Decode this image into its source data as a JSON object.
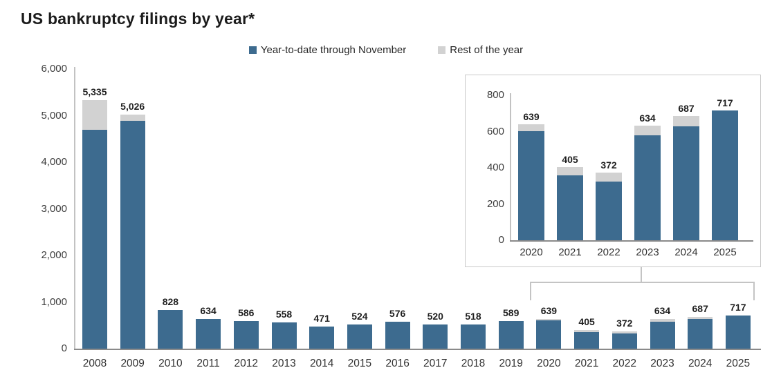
{
  "title": "US bankruptcy filings by year*",
  "legend": {
    "items": [
      {
        "label": "Year-to-date through November",
        "color": "#3d6b8f"
      },
      {
        "label": "Rest of the year",
        "color": "#d2d2d2"
      }
    ]
  },
  "colors": {
    "ytd_bar": "#3d6b8f",
    "rest_bar": "#d2d2d2",
    "x_axis_line": "#8a8a8a",
    "y_axis_line": "#c2c2c2",
    "title_text": "#1c1c1c",
    "tick_text": "#3d3d3d",
    "bar_label_text": "#1f1f1f",
    "inset_border": "#c9c9c9",
    "connector_line": "#c4c4c4"
  },
  "chart_data": [
    {
      "id": "main-chart",
      "type": "bar",
      "stacked": true,
      "title": "US bankruptcy filings by year*",
      "legend_position": "top",
      "grid": false,
      "categories": [
        "2008",
        "2009",
        "2010",
        "2011",
        "2012",
        "2013",
        "2014",
        "2015",
        "2016",
        "2017",
        "2018",
        "2019",
        "2020",
        "2021",
        "2022",
        "2023",
        "2024",
        "2025"
      ],
      "series": [
        {
          "name": "Year-to-date through November",
          "values": [
            4700,
            4890,
            828,
            634,
            586,
            558,
            471,
            524,
            576,
            520,
            518,
            589,
            600,
            360,
            325,
            580,
            630,
            717
          ]
        },
        {
          "name": "Rest of the year",
          "values": [
            635,
            136,
            0,
            0,
            0,
            0,
            0,
            0,
            0,
            0,
            0,
            0,
            39,
            45,
            47,
            54,
            57,
            0
          ]
        }
      ],
      "bar_total_labels": [
        "5,335",
        "5,026",
        "828",
        "634",
        "586",
        "558",
        "471",
        "524",
        "576",
        "520",
        "518",
        "589",
        "639",
        "405",
        "372",
        "634",
        "687",
        "717"
      ],
      "ylim": [
        0,
        6000
      ],
      "yticks": [
        {
          "v": 6000,
          "label": "6,000"
        },
        {
          "v": 5000,
          "label": "5,000"
        },
        {
          "v": 4000,
          "label": "4,000"
        },
        {
          "v": 3000,
          "label": "3,000"
        },
        {
          "v": 2000,
          "label": "2,000"
        },
        {
          "v": 1000,
          "label": "1,000"
        },
        {
          "v": 0,
          "label": "0"
        }
      ]
    },
    {
      "id": "inset-chart",
      "type": "bar",
      "stacked": true,
      "title": "",
      "legend_position": "none",
      "grid": false,
      "categories": [
        "2020",
        "2021",
        "2022",
        "2023",
        "2024",
        "2025"
      ],
      "series": [
        {
          "name": "Year-to-date through November",
          "values": [
            600,
            360,
            325,
            580,
            630,
            717
          ]
        },
        {
          "name": "Rest of the year",
          "values": [
            39,
            45,
            47,
            54,
            57,
            0
          ]
        }
      ],
      "bar_total_labels": [
        "639",
        "405",
        "372",
        "634",
        "687",
        "717"
      ],
      "ylim": [
        0,
        800
      ],
      "yticks": [
        {
          "v": 800,
          "label": "800"
        },
        {
          "v": 600,
          "label": "600"
        },
        {
          "v": 400,
          "label": "400"
        },
        {
          "v": 200,
          "label": "200"
        },
        {
          "v": 0,
          "label": "0"
        }
      ]
    }
  ]
}
